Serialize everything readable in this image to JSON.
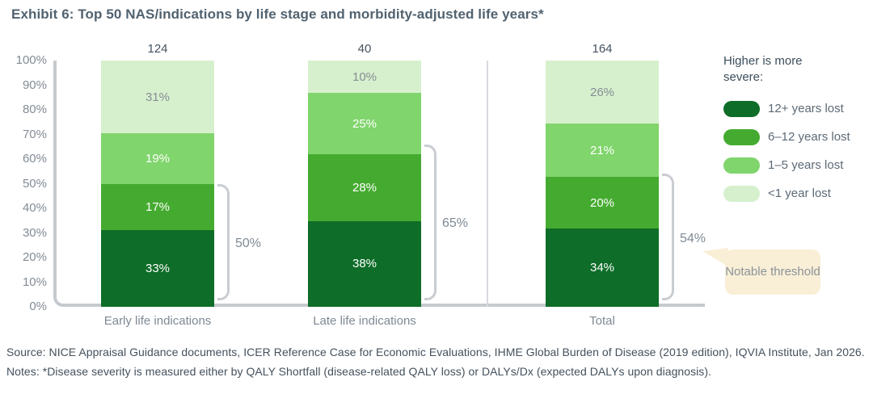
{
  "title": "Exhibit 6: Top 50 NAS/indications by life stage and morbidity-adjusted life years*",
  "chart_data": {
    "type": "bar",
    "stacked": true,
    "categories": [
      "Early life indications",
      "Late life indications",
      "Total"
    ],
    "bar_totals": [
      "124",
      "40",
      "164"
    ],
    "series": [
      {
        "name": "12+ years lost",
        "color": "#0e6d28",
        "label_color": "#ffffff",
        "values": [
          33,
          38,
          34
        ]
      },
      {
        "name": "6–12 years lost",
        "color": "#45ab30",
        "label_color": "#ffffff",
        "values": [
          17,
          28,
          20
        ]
      },
      {
        "name": "1–5 years lost",
        "color": "#80d56c",
        "label_color": "#ffffff",
        "values": [
          19,
          25,
          21
        ]
      },
      {
        "name": "<1 year lost",
        "color": "#d6f0cd",
        "label_color": "#868d95",
        "values": [
          31,
          10,
          26
        ]
      }
    ],
    "value_suffix": "%",
    "ylim": [
      0,
      100
    ],
    "yticks": [
      "100%",
      "90%",
      "80%",
      "70%",
      "60%",
      "50%",
      "40%",
      "30%",
      "20%",
      "10%",
      "0%"
    ],
    "grid": false,
    "brackets": [
      {
        "label": "50%",
        "span": 50
      },
      {
        "label": "65%",
        "span": 66
      },
      {
        "label": "54%",
        "span": 54
      }
    ],
    "legend_title": "Higher is more severe:",
    "legend_position": "right"
  },
  "callout": {
    "text": "Notable threshold",
    "bg": "#f9efd6"
  },
  "footer": {
    "source": "Source: NICE Appraisal Guidance documents, ICER Reference Case for Economic Evaluations, IHME Global Burden of Disease (2019 edition), IQVIA Institute, Jan 2026.",
    "notes": "Notes: *Disease severity is measured either by QALY Shortfall (disease-related QALY loss) or DALYs/Dx (expected DALYs upon diagnosis)."
  }
}
